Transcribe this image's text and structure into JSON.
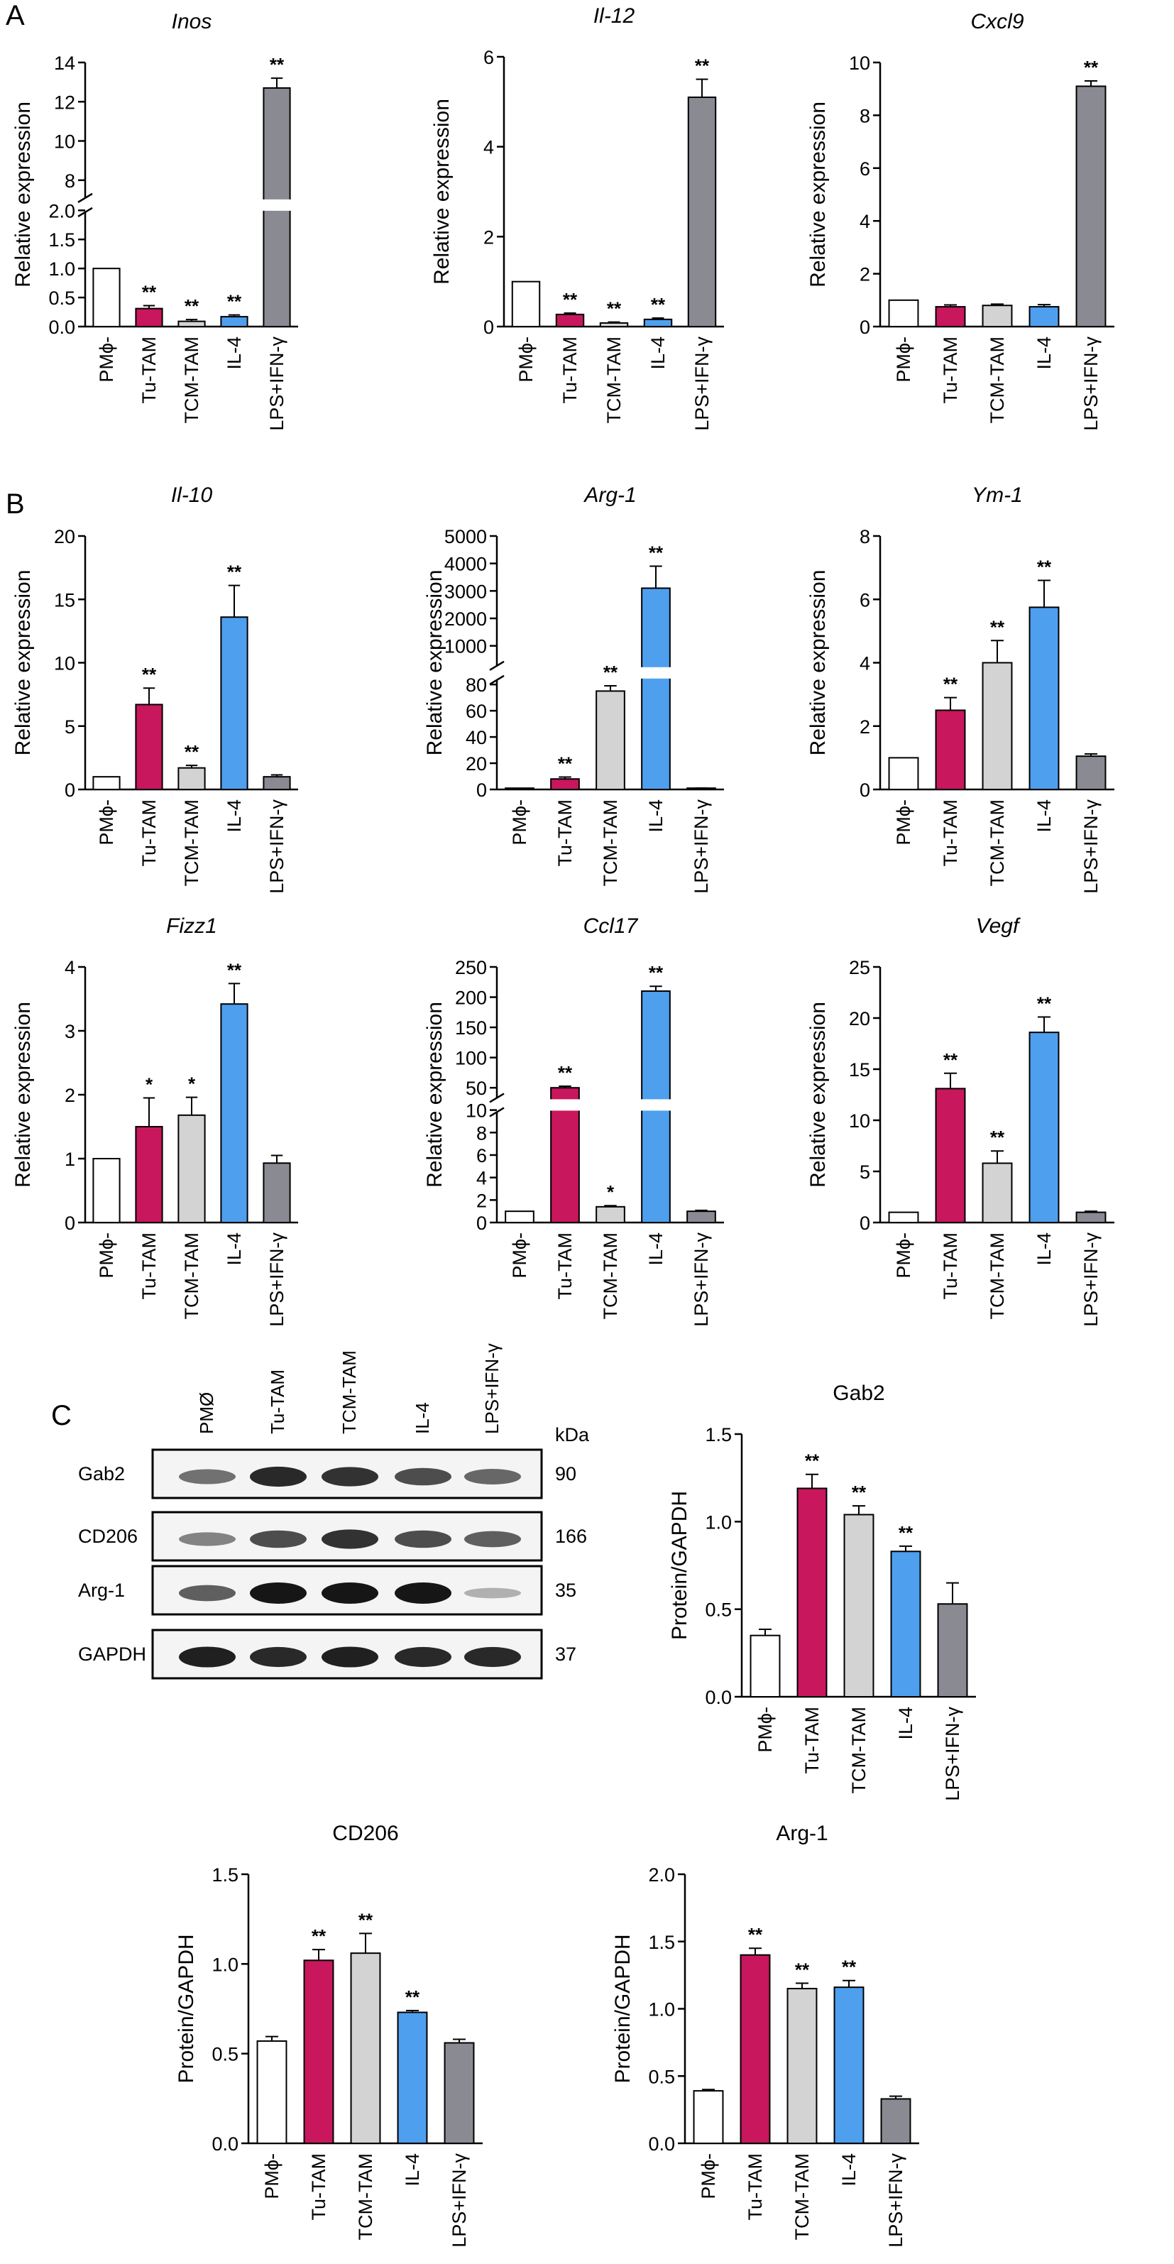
{
  "panel_labels": [
    "A",
    "B",
    "C"
  ],
  "colors": {
    "PMphi": "#ffffff",
    "Tu-TAM": "#c8175c",
    "TCM-TAM": "#d3d3d3",
    "IL-4": "#4f9fef",
    "LPS+IFN-γ": "#8a8a93",
    "axis": "#000000"
  },
  "blot": {
    "lane_labels": [
      "PMØ",
      "Tu-TAM",
      "TCM-TAM",
      "IL-4",
      "LPS+IFN-γ"
    ],
    "kda_label": "kDa",
    "rows": [
      {
        "name": "Gab2",
        "kda": "90",
        "intensity": [
          0.5,
          0.9,
          0.85,
          0.7,
          0.55
        ]
      },
      {
        "name": "CD206",
        "kda": "166",
        "intensity": [
          0.4,
          0.7,
          0.85,
          0.7,
          0.6
        ]
      },
      {
        "name": "Arg-1",
        "kda": "35",
        "intensity": [
          0.6,
          1.0,
          1.0,
          1.0,
          0.15
        ]
      },
      {
        "name": "GAPDH",
        "kda": "37",
        "intensity": [
          0.95,
          0.9,
          0.95,
          0.9,
          0.9
        ]
      }
    ]
  },
  "chart_data": [
    {
      "type": "bar",
      "title": "Inos",
      "italic": true,
      "ylabel": "Relative expression",
      "categories": [
        "PMϕ-",
        "Tu-TAM",
        "TCM-TAM",
        "IL-4",
        "LPS+IFN-γ"
      ],
      "values": [
        1.0,
        0.31,
        0.09,
        0.17,
        12.7
      ],
      "errors": [
        0,
        0.05,
        0.03,
        0.03,
        0.5
      ],
      "sig": [
        "",
        "**",
        "**",
        "**",
        "**"
      ],
      "broken_axis": {
        "lower": [
          0,
          2.0
        ],
        "upper": [
          7,
          14
        ]
      },
      "yticks": [
        0.0,
        0.5,
        1.0,
        1.5,
        2.0,
        8,
        10,
        12,
        14
      ],
      "ytick_labels": [
        "0.0",
        "0.5",
        "1.0",
        "1.5",
        "2.0",
        "8",
        "10",
        "12",
        "14"
      ]
    },
    {
      "type": "bar",
      "title": "Il-12",
      "italic": true,
      "ylabel": "Relative expression",
      "categories": [
        "PMϕ-",
        "Tu-TAM",
        "TCM-TAM",
        "IL-4",
        "LPS+IFN-γ"
      ],
      "values": [
        1.0,
        0.27,
        0.08,
        0.16,
        5.1
      ],
      "errors": [
        0,
        0.03,
        0.02,
        0.03,
        0.4
      ],
      "sig": [
        "",
        "**",
        "**",
        "**",
        "**"
      ],
      "ylim": [
        0,
        6
      ],
      "yticks": [
        0,
        2,
        4,
        6
      ],
      "ytick_labels": [
        "0",
        "2",
        "4",
        "6"
      ]
    },
    {
      "type": "bar",
      "title": "Cxcl9",
      "italic": true,
      "ylabel": "Relative expression",
      "categories": [
        "PMϕ-",
        "Tu-TAM",
        "TCM-TAM",
        "IL-4",
        "LPS+IFN-γ"
      ],
      "values": [
        1.0,
        0.75,
        0.8,
        0.75,
        9.1
      ],
      "errors": [
        0,
        0.07,
        0.05,
        0.08,
        0.2
      ],
      "sig": [
        "",
        "",
        "",
        "",
        "**"
      ],
      "ylim": [
        0,
        10
      ],
      "yticks": [
        0,
        2,
        4,
        6,
        8,
        10
      ],
      "ytick_labels": [
        "0",
        "2",
        "4",
        "6",
        "8",
        "10"
      ]
    },
    {
      "type": "bar",
      "title": "Il-10",
      "italic": true,
      "ylabel": "Relative expression",
      "categories": [
        "PMϕ-",
        "Tu-TAM",
        "TCM-TAM",
        "IL-4",
        "LPS+IFN-γ"
      ],
      "values": [
        1.0,
        6.7,
        1.7,
        13.6,
        1.0
      ],
      "errors": [
        0,
        1.3,
        0.2,
        2.5,
        0.15
      ],
      "sig": [
        "",
        "**",
        "**",
        "**",
        ""
      ],
      "ylim": [
        0,
        20
      ],
      "yticks": [
        0,
        5,
        10,
        15,
        20
      ],
      "ytick_labels": [
        "0",
        "5",
        "10",
        "15",
        "20"
      ]
    },
    {
      "type": "bar",
      "title": "Arg-1",
      "italic": true,
      "ylabel": "Relative expression",
      "categories": [
        "PMϕ-",
        "Tu-TAM",
        "TCM-TAM",
        "IL-4",
        "LPS+IFN-γ"
      ],
      "values": [
        1.0,
        8.0,
        75.0,
        3100.0,
        1.0
      ],
      "errors": [
        0,
        1.5,
        4.0,
        800.0,
        0.1
      ],
      "sig": [
        "",
        "**",
        "**",
        "**",
        ""
      ],
      "broken_axis": {
        "lower": [
          0,
          85
        ],
        "upper": [
          200,
          5000
        ]
      },
      "yticks": [
        0,
        20,
        40,
        60,
        80,
        1000,
        2000,
        3000,
        4000,
        5000
      ],
      "ytick_labels": [
        "0",
        "20",
        "40",
        "60",
        "80",
        "1000",
        "2000",
        "3000",
        "4000",
        "5000"
      ]
    },
    {
      "type": "bar",
      "title": "Ym-1",
      "italic": true,
      "ylabel": "Relative expression",
      "categories": [
        "PMϕ-",
        "Tu-TAM",
        "TCM-TAM",
        "IL-4",
        "LPS+IFN-γ"
      ],
      "values": [
        1.0,
        2.5,
        4.0,
        5.75,
        1.05
      ],
      "errors": [
        0,
        0.4,
        0.7,
        0.85,
        0.07
      ],
      "sig": [
        "",
        "**",
        "**",
        "**",
        ""
      ],
      "ylim": [
        0,
        8
      ],
      "yticks": [
        0,
        2,
        4,
        6,
        8
      ],
      "ytick_labels": [
        "0",
        "2",
        "4",
        "6",
        "8"
      ]
    },
    {
      "type": "bar",
      "title": "Fizz1",
      "italic": true,
      "ylabel": "Relative expression",
      "categories": [
        "PMϕ-",
        "Tu-TAM",
        "TCM-TAM",
        "IL-4",
        "LPS+IFN-γ"
      ],
      "values": [
        1.0,
        1.5,
        1.68,
        3.42,
        0.93
      ],
      "errors": [
        0,
        0.45,
        0.28,
        0.32,
        0.12
      ],
      "sig": [
        "",
        "*",
        "*",
        "**",
        ""
      ],
      "ylim": [
        0,
        4
      ],
      "yticks": [
        0,
        1,
        2,
        3,
        4
      ],
      "ytick_labels": [
        "0",
        "1",
        "2",
        "3",
        "4"
      ]
    },
    {
      "type": "bar",
      "title": "Ccl17",
      "italic": true,
      "ylabel": "Relative expression",
      "categories": [
        "PMϕ-",
        "Tu-TAM",
        "TCM-TAM",
        "IL-4",
        "LPS+IFN-γ"
      ],
      "values": [
        1.0,
        50.0,
        1.4,
        210.0,
        1.0
      ],
      "errors": [
        0,
        2.5,
        0.1,
        8.0,
        0.08
      ],
      "sig": [
        "",
        "**",
        "*",
        "**",
        ""
      ],
      "broken_axis": {
        "lower": [
          0,
          10
        ],
        "upper": [
          30,
          250
        ]
      },
      "yticks": [
        0,
        2,
        4,
        6,
        8,
        10,
        50,
        100,
        150,
        200,
        250
      ],
      "ytick_labels": [
        "0",
        "2",
        "4",
        "6",
        "8",
        "10",
        "50",
        "100",
        "150",
        "200",
        "250"
      ]
    },
    {
      "type": "bar",
      "title": "Vegf",
      "italic": true,
      "ylabel": "Relative expression",
      "categories": [
        "PMϕ-",
        "Tu-TAM",
        "TCM-TAM",
        "IL-4",
        "LPS+IFN-γ"
      ],
      "values": [
        1.0,
        13.1,
        5.8,
        18.6,
        1.0
      ],
      "errors": [
        0,
        1.5,
        1.2,
        1.5,
        0.1
      ],
      "sig": [
        "",
        "**",
        "**",
        "**",
        ""
      ],
      "ylim": [
        0,
        25
      ],
      "yticks": [
        0,
        5,
        10,
        15,
        20,
        25
      ],
      "ytick_labels": [
        "0",
        "5",
        "10",
        "15",
        "20",
        "25"
      ]
    },
    {
      "type": "bar",
      "title": "Gab2",
      "italic": false,
      "ylabel": "Protein/GAPDH",
      "categories": [
        "PMϕ-",
        "Tu-TAM",
        "TCM-TAM",
        "IL-4",
        "LPS+IFN-γ"
      ],
      "values": [
        0.35,
        1.19,
        1.04,
        0.83,
        0.53
      ],
      "errors": [
        0.035,
        0.08,
        0.05,
        0.03,
        0.12
      ],
      "sig": [
        "",
        "**",
        "**",
        "**",
        ""
      ],
      "ylim": [
        0,
        1.5
      ],
      "yticks": [
        0,
        0.5,
        1.0,
        1.5
      ],
      "ytick_labels": [
        "0.0",
        "0.5",
        "1.0",
        "1.5"
      ]
    },
    {
      "type": "bar",
      "title": "CD206",
      "italic": false,
      "ylabel": "Protein/GAPDH",
      "categories": [
        "PMϕ-",
        "Tu-TAM",
        "TCM-TAM",
        "IL-4",
        "LPS+IFN-γ"
      ],
      "values": [
        0.57,
        1.02,
        1.06,
        0.73,
        0.56
      ],
      "errors": [
        0.025,
        0.06,
        0.11,
        0.01,
        0.02
      ],
      "sig": [
        "",
        "**",
        "**",
        "**",
        ""
      ],
      "ylim": [
        0,
        1.5
      ],
      "yticks": [
        0,
        0.5,
        1.0,
        1.5
      ],
      "ytick_labels": [
        "0.0",
        "0.5",
        "1.0",
        "1.5"
      ]
    },
    {
      "type": "bar",
      "title": "Arg-1",
      "italic": false,
      "ylabel": "Protein/GAPDH",
      "categories": [
        "PMϕ-",
        "Tu-TAM",
        "TCM-TAM",
        "IL-4",
        "LPS+IFN-γ"
      ],
      "values": [
        0.39,
        1.4,
        1.15,
        1.16,
        0.33
      ],
      "errors": [
        0.01,
        0.05,
        0.04,
        0.05,
        0.02
      ],
      "sig": [
        "",
        "**",
        "**",
        "**",
        ""
      ],
      "ylim": [
        0,
        2.0
      ],
      "yticks": [
        0,
        0.5,
        1.0,
        1.5,
        2.0
      ],
      "ytick_labels": [
        "0.0",
        "0.5",
        "1.0",
        "1.5",
        "2.0"
      ]
    }
  ]
}
